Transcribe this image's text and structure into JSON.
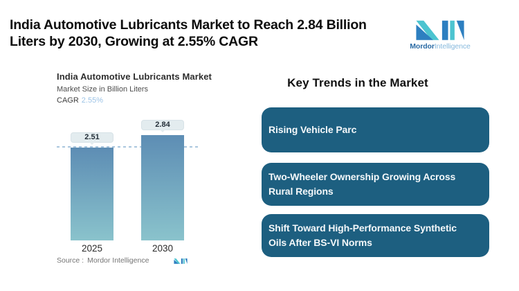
{
  "header": {
    "title_lines": [
      "India Automotive Lubricants Market to Reach 2.84 Billion",
      "Liters by 2030, Growing at 2.55% CAGR"
    ],
    "brand": {
      "name_bold": "Mordor",
      "name_light": "Intelligence"
    }
  },
  "chart": {
    "title": "India Automotive Lubricants Market",
    "subtitle": "Market Size in Billion Liters",
    "cagr_label": "CAGR",
    "cagr_value": "2.55%",
    "source_label": "Source :",
    "source_brand": "Mordor Intelligence"
  },
  "chart_data": {
    "type": "bar",
    "title": "India Automotive Lubricants Market",
    "ylabel": "Market Size in Billion Liters",
    "categories": [
      "2025",
      "2030"
    ],
    "values": [
      2.51,
      2.84
    ],
    "data_labels": [
      "2.51",
      "2.84"
    ],
    "ylim": [
      0,
      3
    ],
    "grid": "off",
    "legend": "none",
    "annotations": {
      "cagr": "2.55%",
      "reference_dashed_line_at": 2.51
    }
  },
  "trends": {
    "heading": "Key Trends in the Market",
    "cards": [
      {
        "lines": [
          "Rising Vehicle Parc",
          ""
        ]
      },
      {
        "lines": [
          "Two-Wheeler Ownership Growing Across",
          "Rural Regions"
        ]
      },
      {
        "lines": [
          "Shift Toward High-Performance Synthetic",
          "Oils After BS-VI Norms"
        ]
      }
    ]
  },
  "colors": {
    "brand_blue": "#2d7fc0",
    "brand_teal": "#4cc4d0",
    "bar_top": "#5d8db4",
    "bar_bottom": "#8ac3cc",
    "dashed_line": "#a9c6de",
    "badge_bg": "#e3ecef",
    "card_bg": "#1d5f80",
    "cagr_value": "#9cc3e6"
  }
}
